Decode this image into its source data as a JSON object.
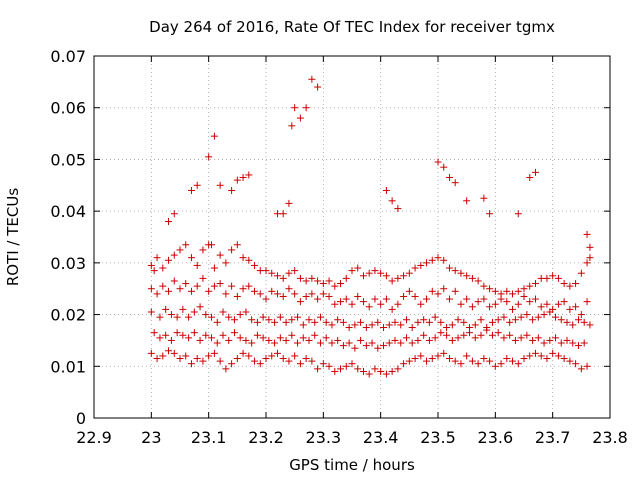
{
  "chart_data": {
    "type": "scatter",
    "title": "Day 264 of 2016, Rate Of TEC Index for receiver tgmx",
    "xlabel": "GPS time / hours",
    "ylabel": "ROTI / TECUs",
    "xlim": [
      22.9,
      23.8
    ],
    "ylim": [
      0,
      0.07
    ],
    "xticks": [
      "22.9",
      "23",
      "23.1",
      "23.2",
      "23.3",
      "23.4",
      "23.5",
      "23.6",
      "23.7",
      "23.8"
    ],
    "yticks": [
      "0",
      "0.01",
      "0.02",
      "0.03",
      "0.04",
      "0.05",
      "0.06",
      "0.07"
    ],
    "grid": true,
    "series": [
      {
        "name": "ROTI",
        "color": "#cc0000",
        "marker": "plus",
        "x": [
          23.0,
          23.005,
          23.01,
          23.02,
          23.03,
          23.04,
          23.05,
          23.06,
          23.07,
          23.08,
          23.09,
          23.1,
          23.11,
          23.12,
          23.13,
          23.14,
          23.15,
          23.16,
          23.17,
          23.18,
          23.19,
          23.2,
          23.21,
          23.22,
          23.23,
          23.24,
          23.25,
          23.26,
          23.27,
          23.28,
          23.29,
          23.3,
          23.31,
          23.32,
          23.33,
          23.34,
          23.35,
          23.36,
          23.37,
          23.38,
          23.39,
          23.4,
          23.41,
          23.42,
          23.43,
          23.44,
          23.45,
          23.46,
          23.47,
          23.48,
          23.49,
          23.5,
          23.51,
          23.52,
          23.53,
          23.54,
          23.55,
          23.56,
          23.57,
          23.58,
          23.59,
          23.6,
          23.61,
          23.62,
          23.63,
          23.64,
          23.65,
          23.66,
          23.67,
          23.68,
          23.69,
          23.7,
          23.71,
          23.72,
          23.73,
          23.74,
          23.75,
          23.76,
          23.765,
          23.0,
          23.01,
          23.02,
          23.03,
          23.04,
          23.05,
          23.06,
          23.07,
          23.08,
          23.09,
          23.1,
          23.11,
          23.12,
          23.13,
          23.14,
          23.15,
          23.16,
          23.17,
          23.18,
          23.19,
          23.2,
          23.21,
          23.22,
          23.23,
          23.24,
          23.25,
          23.26,
          23.27,
          23.28,
          23.29,
          23.3,
          23.31,
          23.32,
          23.33,
          23.34,
          23.35,
          23.36,
          23.37,
          23.38,
          23.39,
          23.4,
          23.41,
          23.42,
          23.43,
          23.44,
          23.45,
          23.46,
          23.47,
          23.48,
          23.49,
          23.5,
          23.51,
          23.52,
          23.53,
          23.54,
          23.55,
          23.56,
          23.57,
          23.58,
          23.59,
          23.6,
          23.61,
          23.62,
          23.63,
          23.64,
          23.65,
          23.66,
          23.67,
          23.68,
          23.69,
          23.7,
          23.71,
          23.72,
          23.73,
          23.74,
          23.75,
          23.76,
          23.0,
          23.015,
          23.025,
          23.035,
          23.045,
          23.055,
          23.065,
          23.075,
          23.085,
          23.095,
          23.105,
          23.115,
          23.125,
          23.135,
          23.145,
          23.155,
          23.165,
          23.175,
          23.185,
          23.195,
          23.205,
          23.215,
          23.225,
          23.235,
          23.245,
          23.255,
          23.265,
          23.275,
          23.285,
          23.295,
          23.305,
          23.315,
          23.325,
          23.335,
          23.345,
          23.355,
          23.365,
          23.375,
          23.385,
          23.395,
          23.405,
          23.415,
          23.425,
          23.435,
          23.445,
          23.455,
          23.465,
          23.475,
          23.485,
          23.495,
          23.505,
          23.515,
          23.525,
          23.535,
          23.545,
          23.555,
          23.565,
          23.575,
          23.585,
          23.595,
          23.605,
          23.615,
          23.625,
          23.635,
          23.645,
          23.655,
          23.665,
          23.675,
          23.685,
          23.695,
          23.705,
          23.715,
          23.725,
          23.735,
          23.745,
          23.755,
          23.765,
          23.005,
          23.015,
          23.025,
          23.035,
          23.045,
          23.055,
          23.065,
          23.075,
          23.085,
          23.095,
          23.105,
          23.115,
          23.125,
          23.135,
          23.145,
          23.155,
          23.165,
          23.175,
          23.185,
          23.195,
          23.205,
          23.215,
          23.225,
          23.235,
          23.245,
          23.255,
          23.265,
          23.275,
          23.285,
          23.295,
          23.305,
          23.315,
          23.325,
          23.335,
          23.345,
          23.355,
          23.365,
          23.375,
          23.385,
          23.395,
          23.405,
          23.415,
          23.425,
          23.435,
          23.445,
          23.455,
          23.465,
          23.475,
          23.485,
          23.495,
          23.505,
          23.515,
          23.525,
          23.535,
          23.545,
          23.555,
          23.565,
          23.575,
          23.585,
          23.595,
          23.605,
          23.615,
          23.625,
          23.635,
          23.645,
          23.655,
          23.665,
          23.675,
          23.685,
          23.695,
          23.705,
          23.715,
          23.725,
          23.735,
          23.745,
          23.755,
          23.0,
          23.01,
          23.02,
          23.03,
          23.04,
          23.05,
          23.06,
          23.07,
          23.08,
          23.09,
          23.1,
          23.11,
          23.12,
          23.13,
          23.14,
          23.15,
          23.16,
          23.17,
          23.18,
          23.19,
          23.2,
          23.21,
          23.22,
          23.23,
          23.24,
          23.25,
          23.26,
          23.27,
          23.28,
          23.29,
          23.3,
          23.31,
          23.32,
          23.33,
          23.34,
          23.35,
          23.36,
          23.37,
          23.38,
          23.39,
          23.4,
          23.41,
          23.42,
          23.43,
          23.44,
          23.45,
          23.46,
          23.47,
          23.48,
          23.49,
          23.5,
          23.51,
          23.52,
          23.53,
          23.54,
          23.55,
          23.56,
          23.57,
          23.58,
          23.59,
          23.6,
          23.61,
          23.62,
          23.63,
          23.64,
          23.65,
          23.66,
          23.67,
          23.68,
          23.69,
          23.7,
          23.71,
          23.72,
          23.73,
          23.74,
          23.75,
          23.76,
          23.03,
          23.04,
          23.07,
          23.08,
          23.1,
          23.105,
          23.11,
          23.12,
          23.14,
          23.15,
          23.16,
          23.17,
          23.22,
          23.23,
          23.24,
          23.245,
          23.25,
          23.26,
          23.27,
          23.28,
          23.29,
          23.41,
          23.42,
          23.43,
          23.5,
          23.51,
          23.52,
          23.53,
          23.55,
          23.58,
          23.59,
          23.64,
          23.66,
          23.67,
          23.76,
          23.765
        ],
        "y": [
          0.0295,
          0.0285,
          0.031,
          0.029,
          0.0305,
          0.0315,
          0.0325,
          0.0335,
          0.031,
          0.0295,
          0.0325,
          0.0335,
          0.029,
          0.0315,
          0.03,
          0.0325,
          0.0335,
          0.031,
          0.0305,
          0.0295,
          0.0285,
          0.0285,
          0.028,
          0.0275,
          0.027,
          0.028,
          0.0285,
          0.027,
          0.0265,
          0.027,
          0.0265,
          0.026,
          0.0265,
          0.0255,
          0.026,
          0.027,
          0.0285,
          0.029,
          0.0275,
          0.028,
          0.0285,
          0.028,
          0.0275,
          0.0265,
          0.027,
          0.0275,
          0.028,
          0.029,
          0.0295,
          0.03,
          0.0305,
          0.031,
          0.0305,
          0.029,
          0.0285,
          0.028,
          0.0275,
          0.027,
          0.0265,
          0.0255,
          0.025,
          0.0245,
          0.024,
          0.0245,
          0.024,
          0.0245,
          0.025,
          0.0255,
          0.026,
          0.027,
          0.027,
          0.0275,
          0.027,
          0.026,
          0.0255,
          0.026,
          0.028,
          0.03,
          0.031,
          0.025,
          0.024,
          0.0255,
          0.0245,
          0.0265,
          0.025,
          0.026,
          0.0245,
          0.0255,
          0.027,
          0.0245,
          0.0255,
          0.026,
          0.024,
          0.0255,
          0.0235,
          0.025,
          0.0255,
          0.0245,
          0.024,
          0.023,
          0.0245,
          0.024,
          0.0235,
          0.025,
          0.024,
          0.0225,
          0.0235,
          0.024,
          0.023,
          0.024,
          0.0235,
          0.022,
          0.0225,
          0.023,
          0.022,
          0.0235,
          0.0225,
          0.0215,
          0.023,
          0.022,
          0.023,
          0.021,
          0.022,
          0.0235,
          0.0245,
          0.0235,
          0.022,
          0.023,
          0.0245,
          0.024,
          0.025,
          0.023,
          0.0245,
          0.022,
          0.023,
          0.0215,
          0.0225,
          0.023,
          0.0215,
          0.022,
          0.023,
          0.0225,
          0.021,
          0.022,
          0.0235,
          0.0225,
          0.023,
          0.0215,
          0.022,
          0.021,
          0.022,
          0.0225,
          0.021,
          0.0215,
          0.02,
          0.0225,
          0.0205,
          0.0195,
          0.021,
          0.02,
          0.0195,
          0.021,
          0.0195,
          0.0205,
          0.0215,
          0.02,
          0.0195,
          0.0185,
          0.0205,
          0.0195,
          0.019,
          0.02,
          0.0205,
          0.019,
          0.0185,
          0.0195,
          0.019,
          0.0185,
          0.0195,
          0.0185,
          0.019,
          0.0195,
          0.018,
          0.019,
          0.0185,
          0.0195,
          0.0185,
          0.018,
          0.019,
          0.0185,
          0.0175,
          0.018,
          0.0185,
          0.0175,
          0.018,
          0.0185,
          0.0175,
          0.018,
          0.0185,
          0.018,
          0.019,
          0.0175,
          0.0185,
          0.019,
          0.0185,
          0.0195,
          0.0185,
          0.0175,
          0.018,
          0.019,
          0.0185,
          0.0175,
          0.018,
          0.019,
          0.0175,
          0.0185,
          0.019,
          0.0195,
          0.0185,
          0.019,
          0.0195,
          0.02,
          0.019,
          0.0195,
          0.02,
          0.0205,
          0.0195,
          0.019,
          0.0185,
          0.018,
          0.019,
          0.0185,
          0.018,
          0.0165,
          0.0155,
          0.016,
          0.015,
          0.0165,
          0.016,
          0.0155,
          0.0165,
          0.015,
          0.016,
          0.0155,
          0.0145,
          0.016,
          0.015,
          0.0165,
          0.0155,
          0.015,
          0.0145,
          0.016,
          0.0155,
          0.015,
          0.0145,
          0.0155,
          0.015,
          0.016,
          0.0145,
          0.0155,
          0.015,
          0.016,
          0.0145,
          0.0155,
          0.0145,
          0.015,
          0.014,
          0.0145,
          0.0135,
          0.015,
          0.014,
          0.0145,
          0.0135,
          0.014,
          0.0145,
          0.015,
          0.0145,
          0.0155,
          0.0145,
          0.015,
          0.016,
          0.015,
          0.0155,
          0.0165,
          0.016,
          0.015,
          0.0155,
          0.016,
          0.0165,
          0.0155,
          0.016,
          0.017,
          0.016,
          0.0165,
          0.0155,
          0.016,
          0.015,
          0.0155,
          0.016,
          0.015,
          0.0155,
          0.0145,
          0.015,
          0.0155,
          0.0145,
          0.015,
          0.0145,
          0.014,
          0.0145,
          0.0125,
          0.0115,
          0.012,
          0.013,
          0.0125,
          0.0115,
          0.012,
          0.0105,
          0.0115,
          0.011,
          0.012,
          0.0125,
          0.011,
          0.0095,
          0.0105,
          0.0115,
          0.0125,
          0.012,
          0.011,
          0.0105,
          0.0115,
          0.012,
          0.0125,
          0.0115,
          0.011,
          0.012,
          0.0105,
          0.0115,
          0.011,
          0.0095,
          0.0105,
          0.01,
          0.009,
          0.0095,
          0.01,
          0.0105,
          0.0095,
          0.009,
          0.0085,
          0.0095,
          0.009,
          0.0085,
          0.009,
          0.0095,
          0.0105,
          0.011,
          0.0115,
          0.012,
          0.011,
          0.0115,
          0.012,
          0.0125,
          0.0115,
          0.011,
          0.0105,
          0.012,
          0.011,
          0.0105,
          0.0115,
          0.011,
          0.01,
          0.0105,
          0.0115,
          0.011,
          0.0105,
          0.0115,
          0.012,
          0.0125,
          0.012,
          0.0115,
          0.0125,
          0.012,
          0.0115,
          0.011,
          0.0105,
          0.0095,
          0.01,
          0.038,
          0.0395,
          0.044,
          0.045,
          0.0505,
          0.0335,
          0.0545,
          0.045,
          0.044,
          0.046,
          0.0465,
          0.047,
          0.0395,
          0.0395,
          0.0415,
          0.0565,
          0.06,
          0.058,
          0.06,
          0.0655,
          0.064,
          0.044,
          0.042,
          0.0405,
          0.0495,
          0.0485,
          0.0465,
          0.0455,
          0.042,
          0.0425,
          0.0395,
          0.0395,
          0.0465,
          0.0475,
          0.0355,
          0.033
        ]
      }
    ]
  }
}
